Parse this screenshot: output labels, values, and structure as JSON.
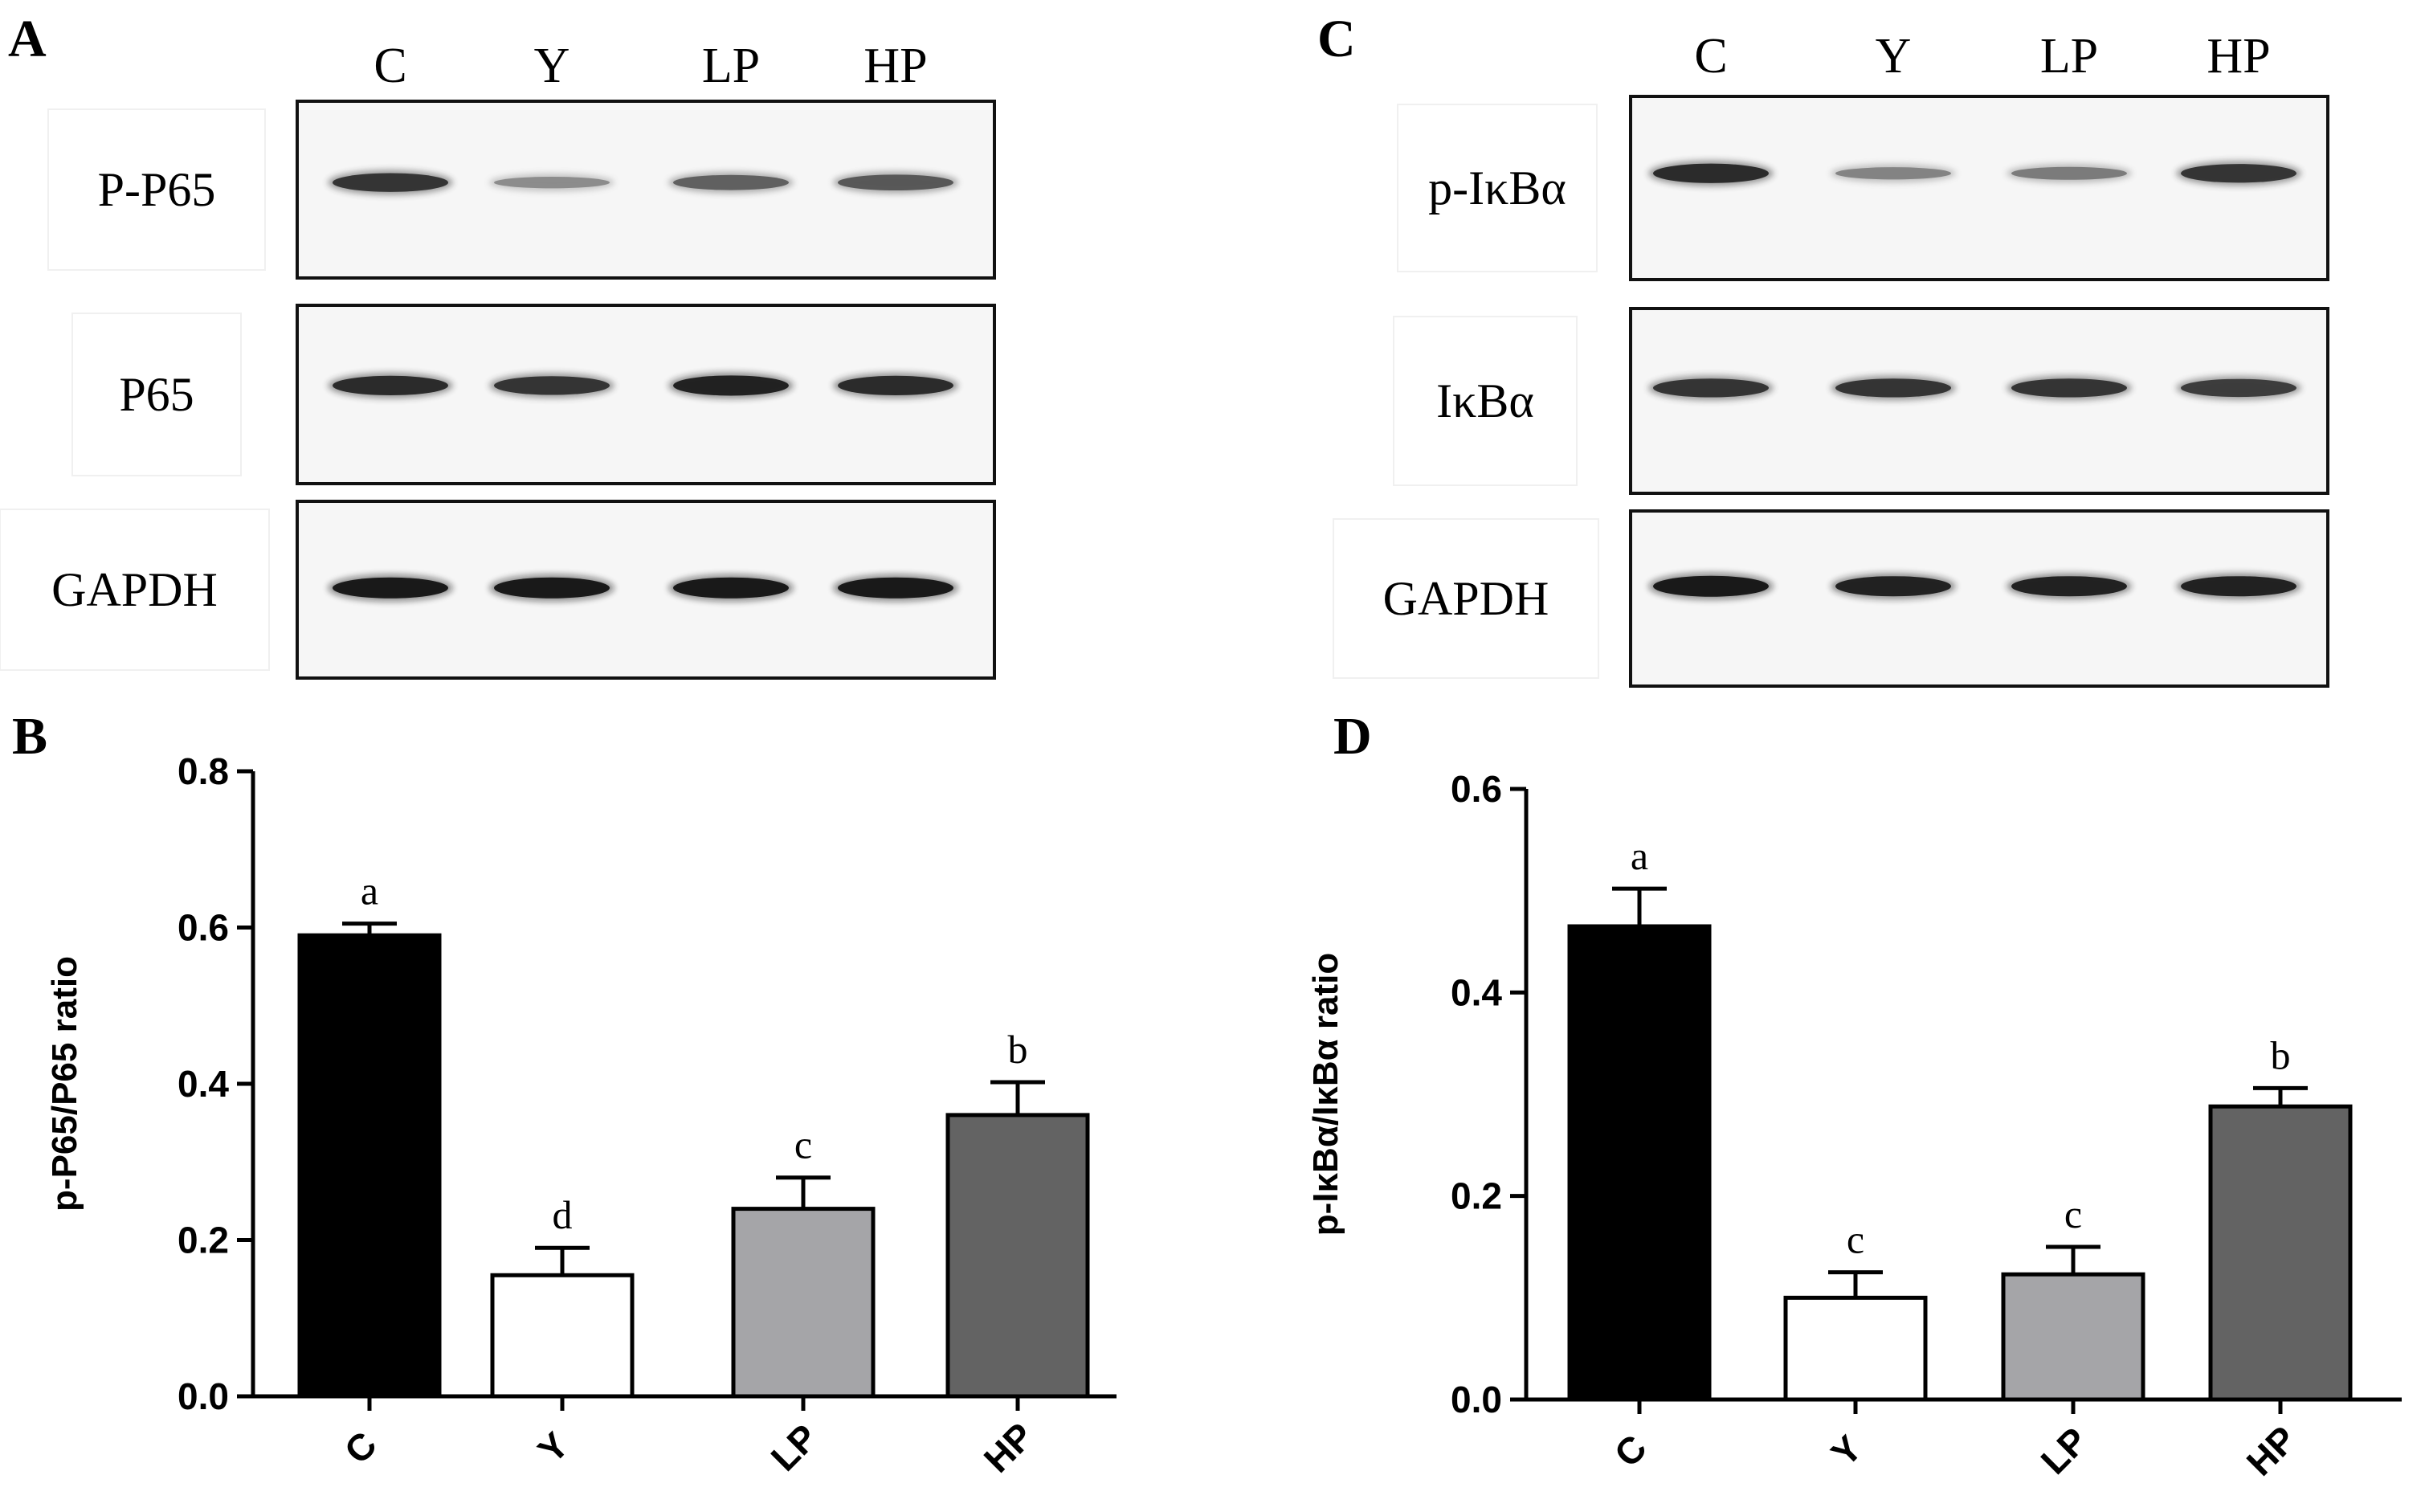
{
  "panels": {
    "A": {
      "letter": "A",
      "lanes": [
        "C",
        "Y",
        "LP",
        "HP"
      ],
      "blots": [
        {
          "label": "P-P65",
          "band_intensity": [
            0.85,
            0.35,
            0.6,
            0.65
          ]
        },
        {
          "label": "P65",
          "band_intensity": [
            0.9,
            0.85,
            0.95,
            0.9
          ]
        },
        {
          "label": "GAPDH",
          "band_intensity": [
            1.0,
            1.0,
            1.0,
            1.0
          ]
        }
      ]
    },
    "C": {
      "letter": "C",
      "lanes": [
        "C",
        "Y",
        "LP",
        "HP"
      ],
      "blots": [
        {
          "label": "p-IκBα",
          "band_intensity": [
            0.9,
            0.4,
            0.45,
            0.85
          ]
        },
        {
          "label": "IκBα",
          "band_intensity": [
            0.85,
            0.85,
            0.85,
            0.8
          ]
        },
        {
          "label": "GAPDH",
          "band_intensity": [
            1.0,
            0.95,
            0.95,
            0.95
          ]
        }
      ]
    },
    "B": {
      "letter": "B"
    },
    "D": {
      "letter": "D"
    }
  },
  "chart_data": [
    {
      "type": "bar",
      "panel": "B",
      "title": "",
      "categories": [
        "C",
        "Y",
        "LP",
        "HP"
      ],
      "values": [
        0.59,
        0.155,
        0.24,
        0.36
      ],
      "errors": [
        0.015,
        0.035,
        0.04,
        0.042
      ],
      "letters": [
        "a",
        "d",
        "c",
        "b"
      ],
      "colors": [
        "#000000",
        "#ffffff",
        "#a5a5a8",
        "#636363"
      ],
      "xlabel": "",
      "ylabel": "p-P65/P65 ratio",
      "ylim": [
        0,
        0.8
      ],
      "yticks": [
        "0.0",
        "0.2",
        "0.4",
        "0.6",
        "0.8"
      ],
      "grid": false
    },
    {
      "type": "bar",
      "panel": "D",
      "title": "",
      "categories": [
        "C",
        "Y",
        "LP",
        "HP"
      ],
      "values": [
        0.465,
        0.1,
        0.123,
        0.288
      ],
      "errors": [
        0.037,
        0.025,
        0.027,
        0.018
      ],
      "letters": [
        "a",
        "c",
        "c",
        "b"
      ],
      "colors": [
        "#000000",
        "#ffffff",
        "#a5a5a8",
        "#636363"
      ],
      "xlabel": "",
      "ylabel": "p-IκBα/IκBα ratio",
      "ylim": [
        0,
        0.6
      ],
      "yticks": [
        "0.0",
        "0.2",
        "0.4",
        "0.6"
      ],
      "grid": false
    }
  ]
}
